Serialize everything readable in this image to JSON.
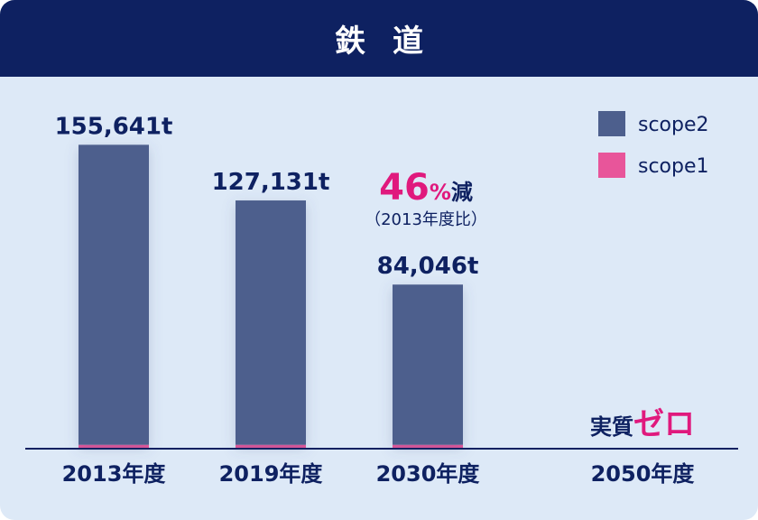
{
  "header": {
    "title": "鉄道"
  },
  "chart_data": {
    "type": "bar",
    "stacked": true,
    "categories": [
      "2013年度",
      "2019年度",
      "2030年度",
      "2050年度"
    ],
    "series": [
      {
        "name": "scope1",
        "color": "#e8559a",
        "values": [
          2000,
          2000,
          2000,
          0
        ]
      },
      {
        "name": "scope2",
        "color": "#4d5f8d",
        "values": [
          153641,
          125131,
          82046,
          0
        ]
      }
    ],
    "value_labels": [
      "155,641t",
      "127,131t",
      "84,046t",
      ""
    ],
    "ylim": [
      0,
      172000
    ],
    "legend": {
      "placement": "top-right",
      "order": [
        "scope2",
        "scope1"
      ]
    },
    "annotations": {
      "reduction": {
        "number": "46",
        "unit": "%",
        "word": "減",
        "note": "（2013年度比）"
      },
      "zero": {
        "prefix": "実質",
        "main": "ゼロ"
      }
    },
    "colors": {
      "header": "#0e2161",
      "background": "#dde9f7",
      "text": "#0e2161",
      "accent": "#e0197d"
    }
  }
}
